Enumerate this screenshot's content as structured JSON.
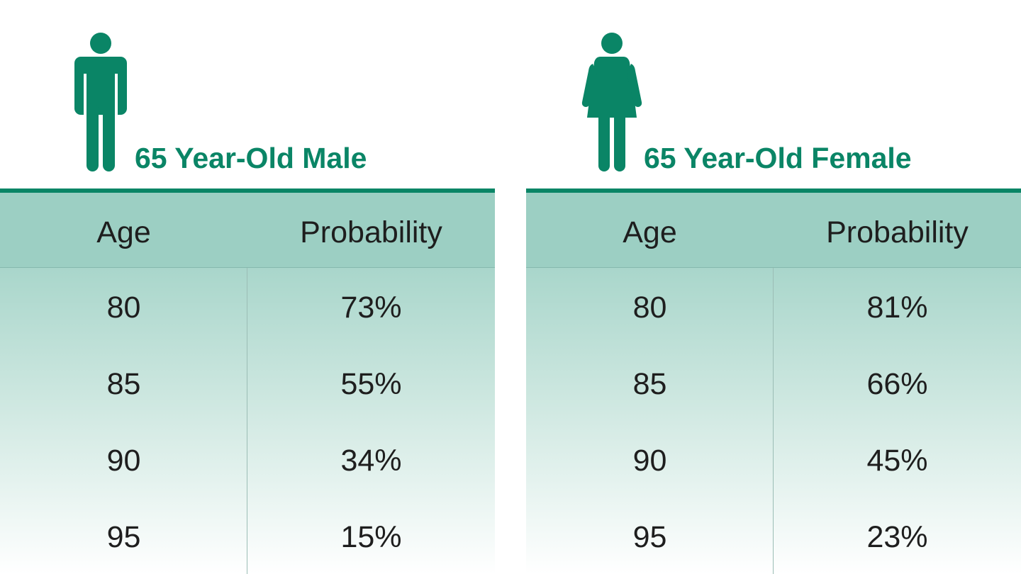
{
  "chart_data": [
    {
      "type": "table",
      "title": "65 Year-Old Male",
      "icon": "male-figure-icon",
      "columns": [
        "Age",
        "Probability"
      ],
      "rows": [
        [
          "80",
          "73%"
        ],
        [
          "85",
          "55%"
        ],
        [
          "90",
          "34%"
        ],
        [
          "95",
          "15%"
        ]
      ]
    },
    {
      "type": "table",
      "title": "65 Year-Old Female",
      "icon": "female-figure-icon",
      "columns": [
        "Age",
        "Probability"
      ],
      "rows": [
        [
          "80",
          "81%"
        ],
        [
          "85",
          "66%"
        ],
        [
          "90",
          "45%"
        ],
        [
          "95",
          "23%"
        ]
      ]
    }
  ],
  "colors": {
    "accent": "#0a8566",
    "header_bg": "#9ccfc3",
    "text": "#1e1e1e"
  }
}
